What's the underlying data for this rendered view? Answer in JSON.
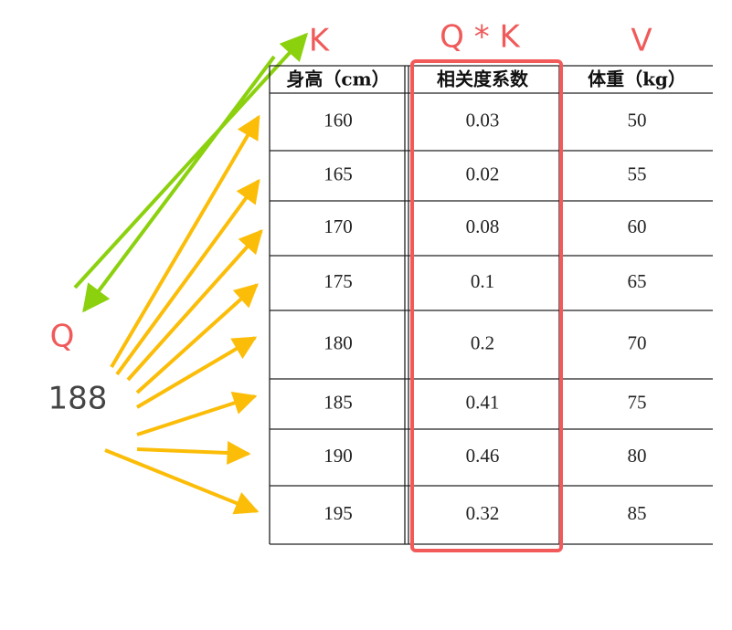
{
  "labels": {
    "k": "K",
    "qk": "Q * K",
    "v": "V",
    "q": "Q",
    "query": "188"
  },
  "table": {
    "header": [
      "身高（cm）",
      "相关度系数",
      "体重（kg）"
    ],
    "rows": [
      [
        "160",
        "0.03",
        "50"
      ],
      [
        "165",
        "0.02",
        "55"
      ],
      [
        "170",
        "0.08",
        "60"
      ],
      [
        "175",
        "0.1",
        "65"
      ],
      [
        "180",
        "0.2",
        "70"
      ],
      [
        "185",
        "0.41",
        "75"
      ],
      [
        "190",
        "0.46",
        "80"
      ],
      [
        "195",
        "0.32",
        "85"
      ]
    ]
  }
}
